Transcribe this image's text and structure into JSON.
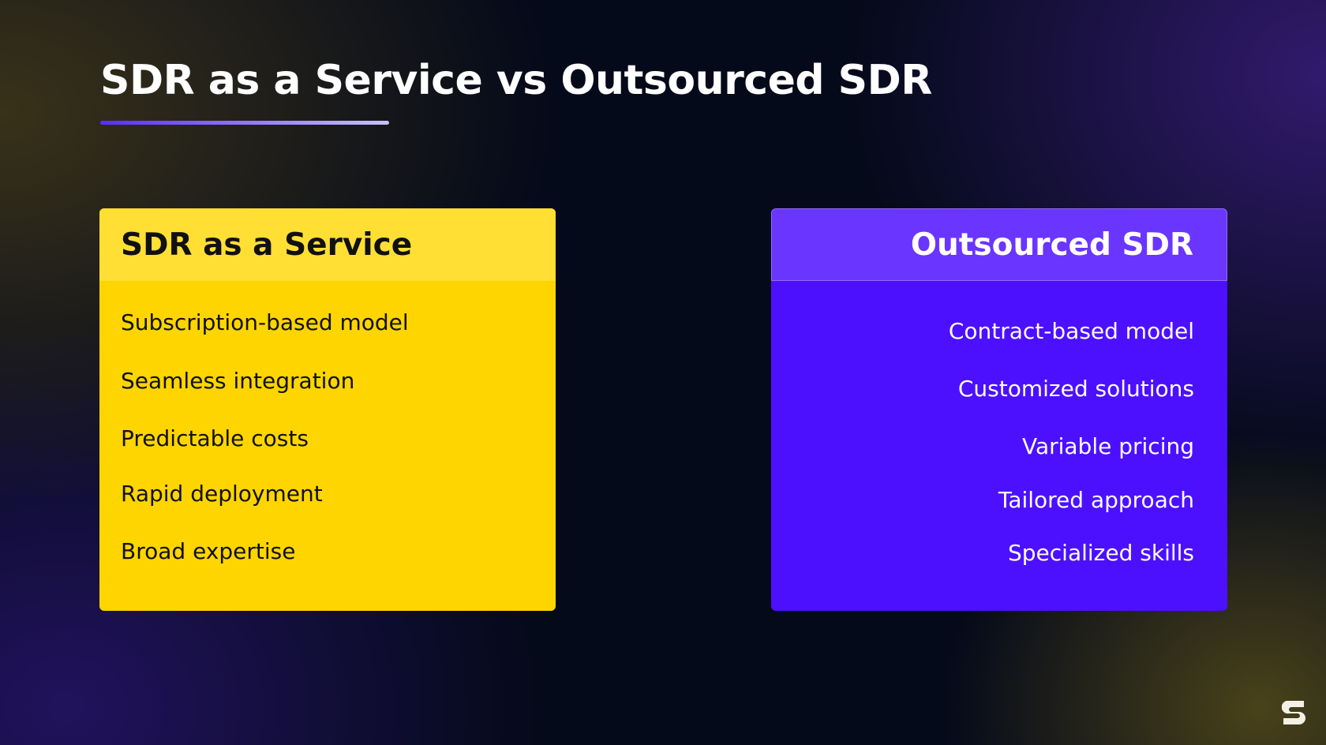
{
  "header": {
    "title": "SDR as a Service vs Outsourced SDR"
  },
  "cards": [
    {
      "heading": "SDR as a Service",
      "items": [
        "Subscription-based model",
        "Seamless integration",
        "Predictable costs",
        "Rapid deployment",
        "Broad expertise"
      ]
    },
    {
      "heading": "Outsourced SDR",
      "items": [
        "Contract-based model",
        "Customized solutions",
        "Variable pricing",
        "Tailored approach",
        "Specialized skills"
      ]
    }
  ]
}
